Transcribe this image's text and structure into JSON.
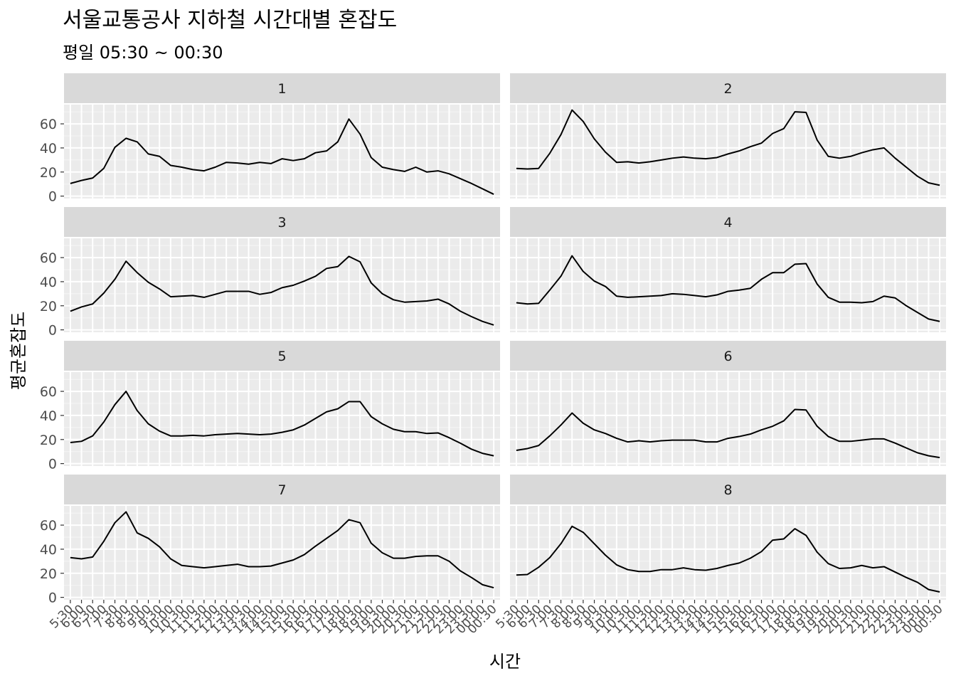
{
  "chart_data": {
    "type": "line",
    "title": "서울교통공사 지하철 시간대별 혼잡도",
    "subtitle": "평일 05:30 ~ 00:30",
    "xlabel": "시간",
    "ylabel": "평균혼잡도",
    "ylim": [
      -2,
      76
    ],
    "yticks": [
      0,
      20,
      40,
      60
    ],
    "grid": true,
    "facet_layout": "4 rows x 2 columns",
    "x": [
      "5:30",
      "6:00",
      "6:30",
      "7:00",
      "7:30",
      "8:00",
      "8:30",
      "9:00",
      "9:30",
      "10:00",
      "10:30",
      "11:00",
      "11:30",
      "12:00",
      "12:30",
      "13:00",
      "13:30",
      "14:00",
      "14:30",
      "15:00",
      "15:30",
      "16:00",
      "16:30",
      "17:00",
      "17:30",
      "18:00",
      "18:30",
      "19:00",
      "19:30",
      "20:00",
      "20:30",
      "21:00",
      "21:30",
      "22:00",
      "22:30",
      "23:00",
      "23:30",
      "00:00",
      "00:30"
    ],
    "panels": [
      {
        "label": "1",
        "values": [
          10.5,
          13,
          15,
          23,
          40.5,
          48,
          45,
          35,
          33,
          25.5,
          24,
          22,
          21,
          24,
          28,
          27.5,
          26.5,
          28,
          27,
          31,
          29.5,
          31,
          36,
          37.5,
          45,
          64,
          51.5,
          32,
          24,
          22,
          20.5,
          24,
          20,
          21,
          18.5,
          14.5,
          10.5,
          6,
          1.5
        ]
      },
      {
        "label": "2",
        "values": [
          23,
          22.5,
          23,
          35.5,
          51,
          71.5,
          62,
          47.5,
          36.5,
          28,
          28.5,
          27.5,
          28.5,
          30,
          31.5,
          32.5,
          31.5,
          31,
          32,
          35,
          37.5,
          41,
          44,
          52,
          56,
          70,
          69.5,
          46.5,
          33,
          31.5,
          33,
          36,
          38.5,
          40,
          31.5,
          24,
          16.5,
          11,
          9
        ]
      },
      {
        "label": "3",
        "values": [
          15.5,
          19,
          21.5,
          30.5,
          42,
          57,
          47.5,
          39.5,
          34,
          27.5,
          28,
          28.5,
          27,
          29.5,
          32,
          32,
          32,
          29.5,
          31,
          35,
          37,
          40.5,
          44.5,
          51,
          52.5,
          61,
          56.5,
          39,
          30,
          25,
          23,
          23.5,
          24,
          25.5,
          21.5,
          15.5,
          11,
          7,
          4
        ]
      },
      {
        "label": "4",
        "values": [
          22.5,
          21.5,
          22,
          33,
          44.5,
          61.5,
          48.5,
          40.5,
          36,
          28,
          27,
          27.5,
          28,
          28.5,
          30,
          29.5,
          28.5,
          27.5,
          29,
          32,
          33,
          34.5,
          42,
          47.5,
          47.5,
          54.5,
          55,
          38,
          27,
          23,
          23,
          22.5,
          23.5,
          28,
          26.5,
          20,
          14.5,
          9,
          7
        ]
      },
      {
        "label": "5",
        "values": [
          17.5,
          18.5,
          23,
          34.5,
          49,
          60,
          44,
          33,
          27,
          23,
          23,
          23.5,
          23,
          24,
          24.5,
          25,
          24.5,
          24,
          24.5,
          26,
          28,
          32,
          37.5,
          43,
          45.5,
          51.5,
          51.5,
          39,
          33,
          28.5,
          26.5,
          26.5,
          25,
          25.5,
          21.5,
          17,
          12,
          8.5,
          6.5
        ]
      },
      {
        "label": "6",
        "values": [
          11,
          12.5,
          15,
          23,
          32,
          42,
          33.5,
          28,
          25,
          21,
          18,
          19,
          18,
          19,
          19.5,
          19.5,
          19.5,
          18,
          18,
          21,
          22.5,
          24.5,
          28,
          31,
          35.5,
          45,
          44.5,
          31,
          22.5,
          18.5,
          18.5,
          19.5,
          20.5,
          20.5,
          17,
          13,
          9,
          6.5,
          5
        ]
      },
      {
        "label": "7",
        "values": [
          33,
          32,
          33.5,
          46.5,
          62,
          71,
          53.5,
          49,
          42,
          32,
          26.5,
          25.5,
          24.5,
          25.5,
          26.5,
          27.5,
          25.5,
          25.5,
          26,
          28.5,
          31,
          35.5,
          42.5,
          49,
          55.5,
          64.5,
          62,
          45,
          37,
          32.5,
          32.5,
          34,
          34.5,
          34.5,
          30,
          22,
          16.5,
          10.5,
          8
        ]
      },
      {
        "label": "8",
        "values": [
          18.5,
          19,
          25,
          33,
          44.5,
          59,
          54,
          44.5,
          35,
          27,
          23,
          21.5,
          21.5,
          23,
          23,
          24.5,
          23,
          22.5,
          24,
          26.5,
          28.5,
          32.5,
          38,
          47.5,
          48.5,
          57,
          51.5,
          37.5,
          28,
          24,
          24.5,
          26.5,
          24.5,
          25.5,
          21,
          16.5,
          12.5,
          6.5,
          4.5
        ]
      }
    ],
    "style": {
      "line_color": "#000000",
      "panel_bg": "#ebebeb",
      "strip_bg": "#d9d9d9",
      "grid_color": "#ffffff"
    }
  }
}
